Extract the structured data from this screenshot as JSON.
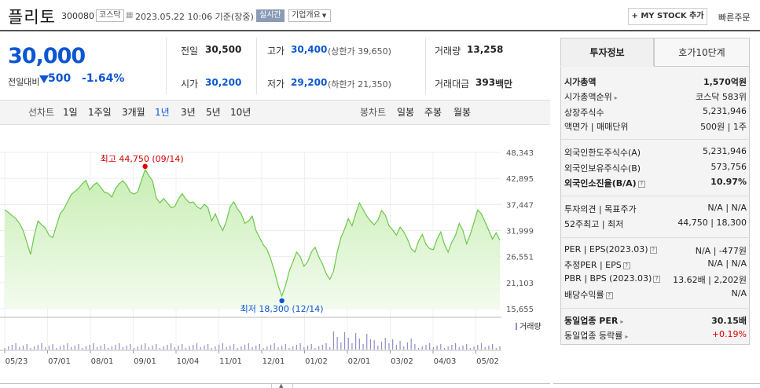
{
  "header": {
    "title": "플리토",
    "code": "300080",
    "market_badge": "코스닥",
    "date_text": "2023.05.22 10:06 기준(장중)",
    "realtime_badge": "실시간",
    "company_info": "기업개요",
    "mystock_btn": "+ MY STOCK 추가",
    "quick_order": "빠른주문"
  },
  "quote": {
    "price": "30,000",
    "change_label": "전일대비",
    "change_val": "500",
    "change_pct": "-1.64%",
    "prev_label": "전일",
    "prev_val": "30,500",
    "high_label": "고가",
    "high_val": "30,400",
    "upper_limit": "(상한가 39,650)",
    "volume_label": "거래량",
    "volume_val": "13,258",
    "open_label": "시가",
    "open_val": "30,200",
    "low_label": "저가",
    "low_val": "29,200",
    "lower_limit": "(하한가 21,350)",
    "amount_label": "거래대금",
    "amount_val": "393",
    "amount_unit": "백만"
  },
  "period": {
    "line_label": "선차트",
    "line_tabs": [
      "1일",
      "1주일",
      "3개월",
      "1년",
      "3년",
      "5년",
      "10년"
    ],
    "selected": "1년",
    "candle_label": "봉차트",
    "candle_tabs": [
      "일봉",
      "주봉",
      "월봉"
    ]
  },
  "colors": {
    "up": "#e00000",
    "down": "#0b57d0",
    "line": "#6cc84a",
    "fill_top": "#c8eeb4",
    "fill_bottom": "#f3fbee"
  },
  "chart_data": {
    "type": "area",
    "y_ticks": [
      "48,343",
      "42,895",
      "37,447",
      "31,999",
      "26,551",
      "21,103",
      "15,655"
    ],
    "ylim": [
      15655,
      48343
    ],
    "x_labels": [
      "05/23",
      "07/01",
      "08/01",
      "09/01",
      "10/04",
      "11/01",
      "12/01",
      "01/02",
      "02/01",
      "03/02",
      "04/03",
      "05/02"
    ],
    "high_annotation": "최고 44,750 (09/14)",
    "low_annotation": "최저 18,300 (12/14)",
    "high_value": 44750,
    "low_value": 18300,
    "volume_legend": "거래량",
    "values": [
      36300,
      35800,
      35100,
      34500,
      33500,
      32000,
      29500,
      27000,
      31000,
      34000,
      33200,
      32500,
      31000,
      30500,
      33000,
      35500,
      36500,
      38000,
      39500,
      40200,
      40800,
      41800,
      42500,
      40500,
      41500,
      42000,
      41000,
      40000,
      39800,
      39000,
      40800,
      41800,
      42400,
      41500,
      40000,
      39600,
      40100,
      42500,
      44750,
      43500,
      42400,
      38800,
      37800,
      38700,
      37800,
      36800,
      37000,
      38600,
      39700,
      38600,
      37800,
      38000,
      37000,
      36500,
      37500,
      36800,
      34000,
      35500,
      33500,
      32000,
      34000,
      37000,
      38000,
      36500,
      35500,
      33500,
      34000,
      35000,
      32000,
      30500,
      29000,
      28000,
      26000,
      23500,
      20500,
      18300,
      20500,
      23500,
      25500,
      27500,
      26500,
      24500,
      25500,
      27500,
      28500,
      26500,
      25000,
      23000,
      21800,
      23500,
      27500,
      30500,
      32300,
      34500,
      33000,
      35500,
      37800,
      36400,
      35000,
      34000,
      33200,
      34200,
      36200,
      35200,
      33000,
      32100,
      31000,
      32700,
      31700,
      30200,
      28200,
      27500,
      29800,
      31200,
      29100,
      28200,
      28000,
      30200,
      31700,
      29100,
      27500,
      29600,
      31000,
      33500,
      32000,
      29200,
      31200,
      33700,
      36300,
      35500,
      33800,
      32000,
      30200,
      31500,
      30000
    ]
  },
  "invest": {
    "tab_info": "투자정보",
    "tab_hoga": "호가10단계",
    "rows": [
      {
        "label": "시가총액",
        "value": "1,570억원",
        "bold": true
      },
      {
        "label": "시가총액순위",
        "value": "코스닥 583위",
        "arrow": true
      },
      {
        "label": "상장주식수",
        "value": "5,231,946"
      },
      {
        "label": "액면가 | 매매단위",
        "value": "500원 | 1주"
      },
      {
        "label": "외국인한도주식수(A)",
        "value": "5,231,946"
      },
      {
        "label": "외국인보유주식수(B)",
        "value": "573,756"
      },
      {
        "label": "외국인소진율(B/A)",
        "value": "10.97%",
        "bold": true,
        "q": true
      },
      {
        "label": "투자의견 | 목표주가",
        "value": "N/A | N/A"
      },
      {
        "label": "52주최고 | 최저",
        "value": "44,750 | 18,300"
      },
      {
        "label": "PER | EPS(2023.03)",
        "value": "N/A | -477원",
        "q": true
      },
      {
        "label": "추정PER | EPS",
        "value": "N/A | N/A",
        "q": true
      },
      {
        "label": "PBR | BPS (2023.03)",
        "value": "13.62배 | 2,202원",
        "q": true
      },
      {
        "label": "배당수익률",
        "value": "N/A",
        "q": true
      },
      {
        "label": "동일업종 PER",
        "value": "30.15배",
        "bold": true,
        "arrow": true
      },
      {
        "label": "동일업종 등락률",
        "value": "+0.19%",
        "red": true,
        "arrow": true
      }
    ]
  }
}
